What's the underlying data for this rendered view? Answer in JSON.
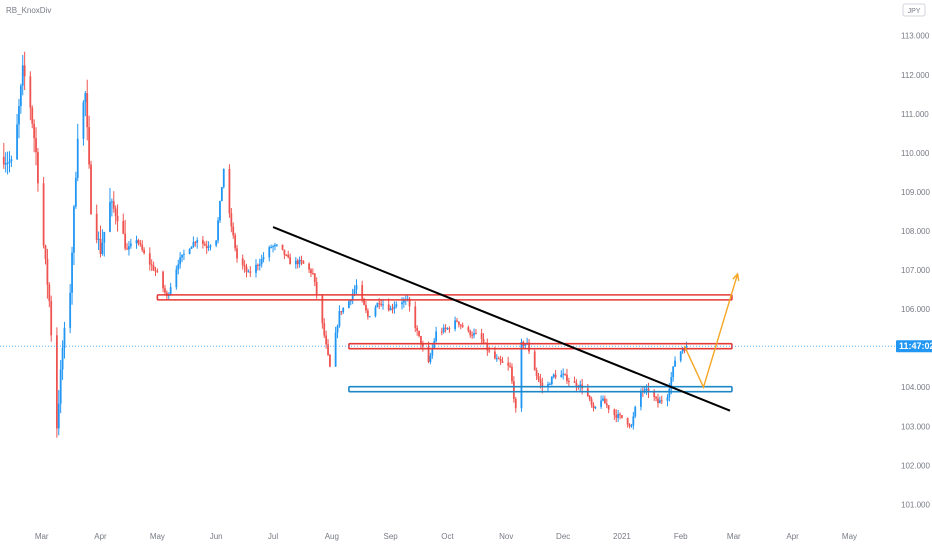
{
  "header": {
    "author": "RB_KnoxDiv"
  },
  "currency_badge": "JPY",
  "price_tag": "11:47:02",
  "colors": {
    "up": "#2196f3",
    "down": "#ef5350",
    "resistance": "#e53935",
    "support": "#1e88c7",
    "trendline": "#000000",
    "projection": "#f5a623",
    "price_line": "#42a5f5",
    "tag_bg": "#2196f3",
    "axis_text": "#787b86"
  },
  "chart_data": {
    "type": "candlestick",
    "title": "",
    "xlabel": "",
    "ylabel": "",
    "ylim": [
      100.6,
      113.3
    ],
    "xlim": [
      "2020-02-08",
      "2021-05-25"
    ],
    "grid": false,
    "y_ticks": [
      "101.000",
      "102.000",
      "103.000",
      "104.000",
      "105.000",
      "106.000",
      "107.000",
      "108.000",
      "109.000",
      "110.000",
      "111.000",
      "112.000",
      "113.000"
    ],
    "x_ticks": [
      {
        "label": "Mar",
        "date": "2020-03-01"
      },
      {
        "label": "Apr",
        "date": "2020-04-01"
      },
      {
        "label": "May",
        "date": "2020-05-01"
      },
      {
        "label": "Jun",
        "date": "2020-06-01"
      },
      {
        "label": "Jul",
        "date": "2020-07-01"
      },
      {
        "label": "Aug",
        "date": "2020-08-01"
      },
      {
        "label": "Sep",
        "date": "2020-09-01"
      },
      {
        "label": "Oct",
        "date": "2020-10-01"
      },
      {
        "label": "Nov",
        "date": "2020-11-01"
      },
      {
        "label": "Dec",
        "date": "2020-12-01"
      },
      {
        "label": "2021",
        "date": "2021-01-01"
      },
      {
        "label": "Feb",
        "date": "2021-02-01"
      },
      {
        "label": "Mar",
        "date": "2021-03-01"
      },
      {
        "label": "Apr",
        "date": "2021-04-01"
      },
      {
        "label": "May",
        "date": "2021-05-01"
      }
    ],
    "price_path": [
      [
        "2020-02-09",
        109.9
      ],
      [
        "2020-02-15",
        109.7
      ],
      [
        "2020-02-20",
        112.1
      ],
      [
        "2020-02-23",
        111.6
      ],
      [
        "2020-02-27",
        110.0
      ],
      [
        "2020-03-01",
        108.1
      ],
      [
        "2020-03-05",
        106.2
      ],
      [
        "2020-03-09",
        103.0
      ],
      [
        "2020-03-12",
        105.0
      ],
      [
        "2020-03-16",
        106.5
      ],
      [
        "2020-03-20",
        110.5
      ],
      [
        "2020-03-24",
        111.5
      ],
      [
        "2020-03-27",
        108.6
      ],
      [
        "2020-04-01",
        107.5
      ],
      [
        "2020-04-06",
        108.7
      ],
      [
        "2020-04-10",
        108.4
      ],
      [
        "2020-04-15",
        107.5
      ],
      [
        "2020-04-20",
        107.8
      ],
      [
        "2020-04-25",
        107.3
      ],
      [
        "2020-05-01",
        106.9
      ],
      [
        "2020-05-06",
        106.3
      ],
      [
        "2020-05-12",
        107.2
      ],
      [
        "2020-05-18",
        107.6
      ],
      [
        "2020-05-22",
        107.8
      ],
      [
        "2020-05-27",
        107.6
      ],
      [
        "2020-06-01",
        107.8
      ],
      [
        "2020-06-05",
        109.6
      ],
      [
        "2020-06-08",
        108.4
      ],
      [
        "2020-06-12",
        107.3
      ],
      [
        "2020-06-18",
        106.9
      ],
      [
        "2020-06-24",
        107.2
      ],
      [
        "2020-06-30",
        107.6
      ],
      [
        "2020-07-04",
        107.6
      ],
      [
        "2020-07-10",
        107.2
      ],
      [
        "2020-07-16",
        107.2
      ],
      [
        "2020-07-22",
        106.9
      ],
      [
        "2020-07-27",
        105.6
      ],
      [
        "2020-07-31",
        104.5
      ],
      [
        "2020-08-05",
        105.9
      ],
      [
        "2020-08-10",
        106.2
      ],
      [
        "2020-08-14",
        106.6
      ],
      [
        "2020-08-20",
        105.8
      ],
      [
        "2020-08-26",
        106.2
      ],
      [
        "2020-09-01",
        106.0
      ],
      [
        "2020-09-05",
        106.2
      ],
      [
        "2020-09-10",
        106.2
      ],
      [
        "2020-09-15",
        105.4
      ],
      [
        "2020-09-21",
        104.6
      ],
      [
        "2020-09-25",
        105.4
      ],
      [
        "2020-10-01",
        105.5
      ],
      [
        "2020-10-06",
        105.7
      ],
      [
        "2020-10-12",
        105.4
      ],
      [
        "2020-10-18",
        105.3
      ],
      [
        "2020-10-24",
        104.8
      ],
      [
        "2020-10-30",
        104.6
      ],
      [
        "2020-11-03",
        104.5
      ],
      [
        "2020-11-06",
        103.4
      ],
      [
        "2020-11-09",
        105.1
      ],
      [
        "2020-11-12",
        105.1
      ],
      [
        "2020-11-17",
        104.3
      ],
      [
        "2020-11-21",
        103.9
      ],
      [
        "2020-11-26",
        104.3
      ],
      [
        "2020-12-01",
        104.3
      ],
      [
        "2020-12-06",
        104.1
      ],
      [
        "2020-12-12",
        104.0
      ],
      [
        "2020-12-17",
        103.4
      ],
      [
        "2020-12-21",
        103.7
      ],
      [
        "2020-12-28",
        103.3
      ],
      [
        "2021-01-02",
        103.2
      ],
      [
        "2021-01-06",
        103.0
      ],
      [
        "2021-01-10",
        103.9
      ],
      [
        "2021-01-15",
        103.9
      ],
      [
        "2021-01-20",
        103.6
      ],
      [
        "2021-01-25",
        103.8
      ],
      [
        "2021-01-29",
        104.7
      ],
      [
        "2021-02-02",
        105.0
      ],
      [
        "2021-02-04",
        105.0
      ]
    ],
    "levels": [
      {
        "kind": "resistance",
        "y": 106.3,
        "from": "2020-05-01",
        "to": "2021-02-28"
      },
      {
        "kind": "resistance",
        "y": 105.05,
        "from": "2020-08-10",
        "to": "2021-02-28"
      },
      {
        "kind": "support",
        "y": 103.95,
        "from": "2020-08-10",
        "to": "2021-02-28"
      }
    ],
    "trendline": {
      "from": [
        "2020-07-01",
        108.1
      ],
      "to": [
        "2021-02-27",
        103.4
      ]
    },
    "projection": [
      [
        "2021-02-03",
        105.05
      ],
      [
        "2021-02-13",
        104.0
      ],
      [
        "2021-03-03",
        106.9
      ]
    ],
    "current_price": 105.05
  }
}
